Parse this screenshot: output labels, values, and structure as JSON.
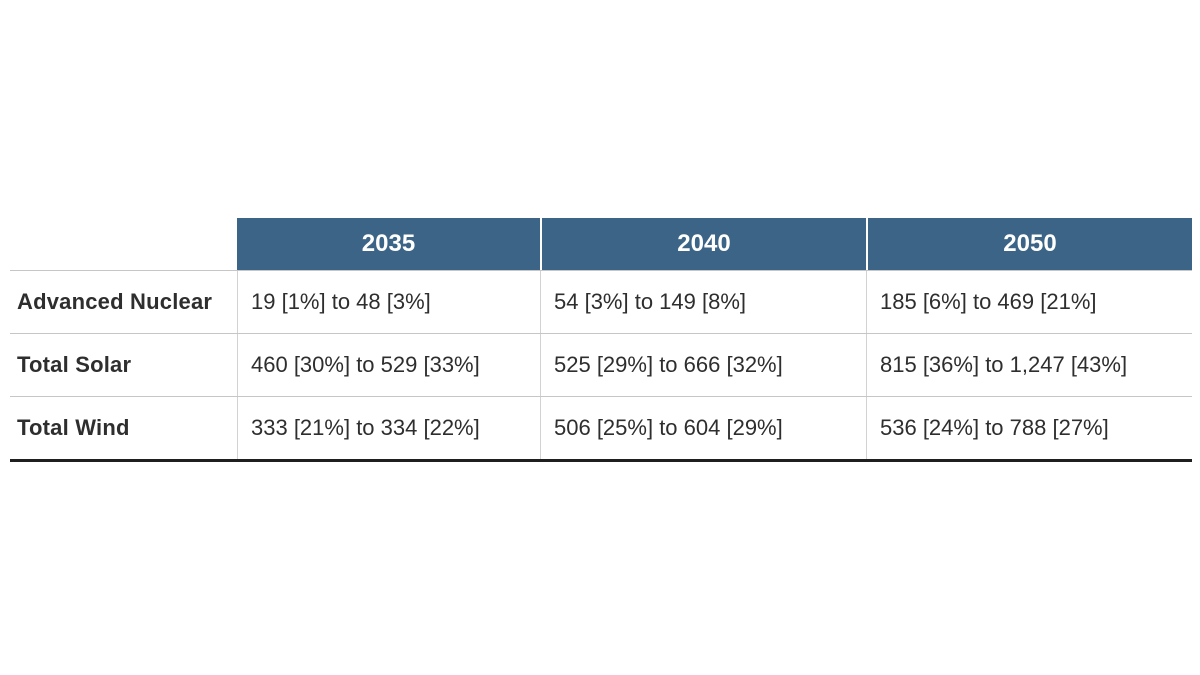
{
  "table": {
    "columns": [
      "2035",
      "2040",
      "2050"
    ],
    "rows": [
      {
        "label": "Advanced Nuclear",
        "values": [
          "19 [1%] to 48 [3%]",
          "54 [3%] to 149 [8%]",
          "185 [6%] to 469 [21%]"
        ]
      },
      {
        "label": "Total Solar",
        "values": [
          "460 [30%] to 529 [33%]",
          "525 [29%] to 666 [32%]",
          "815 [36%] to 1,247 [43%]"
        ]
      },
      {
        "label": "Total Wind",
        "values": [
          "333 [21%] to 334 [22%]",
          "506 [25%] to 604 [29%]",
          "536 [24%] to 788 [27%]"
        ]
      }
    ],
    "colors": {
      "header_bg": "#3b6486",
      "header_text": "#ffffff",
      "body_text": "#2e2e2e",
      "row_border": "#c6c6c6",
      "col_border": "#d2d2d2",
      "bottom_border": "#1f1f1f"
    }
  },
  "chart_data": {
    "type": "table",
    "title": "",
    "column_headers": [
      "",
      "2035",
      "2040",
      "2050"
    ],
    "row_headers": [
      "Advanced Nuclear",
      "Total Solar",
      "Total Wind"
    ],
    "cells": [
      [
        "19 [1%] to 48 [3%]",
        "54 [3%] to 149 [8%]",
        "185 [6%] to 469 [21%]"
      ],
      [
        "460 [30%] to 529 [33%]",
        "525 [29%] to 666 [32%]",
        "815 [36%] to 1,247 [43%]"
      ],
      [
        "333 [21%] to 334 [22%]",
        "506 [25%] to 604 [29%]",
        "536 [24%] to 788 [27%]"
      ]
    ],
    "value_ranges": {
      "Advanced Nuclear": {
        "2035": [
          19,
          48
        ],
        "2040": [
          54,
          149
        ],
        "2050": [
          185,
          469
        ]
      },
      "Total Solar": {
        "2035": [
          460,
          529
        ],
        "2040": [
          525,
          666
        ],
        "2050": [
          815,
          1247
        ]
      },
      "Total Wind": {
        "2035": [
          333,
          334
        ],
        "2040": [
          506,
          604
        ],
        "2050": [
          536,
          788
        ]
      }
    },
    "percent_ranges": {
      "Advanced Nuclear": {
        "2035": [
          1,
          3
        ],
        "2040": [
          3,
          8
        ],
        "2050": [
          6,
          21
        ]
      },
      "Total Solar": {
        "2035": [
          30,
          33
        ],
        "2040": [
          29,
          32
        ],
        "2050": [
          36,
          43
        ]
      },
      "Total Wind": {
        "2035": [
          21,
          22
        ],
        "2040": [
          25,
          29
        ],
        "2050": [
          24,
          27
        ]
      }
    },
    "layout_hints": {
      "header_background": "#3b6486",
      "header_text_color": "#ffffff",
      "grid": "horizontal light rules, thick dark bottom rule"
    }
  }
}
